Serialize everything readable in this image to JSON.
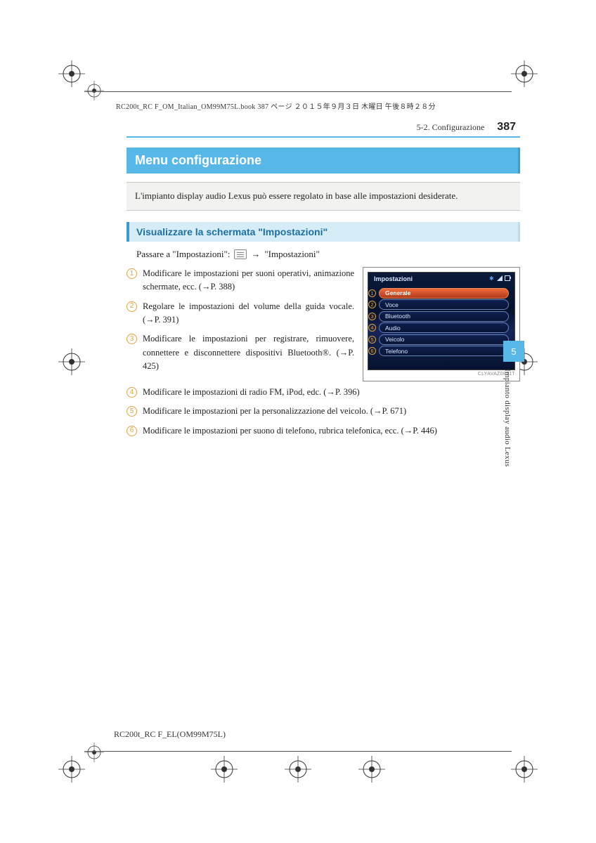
{
  "colors": {
    "accent": "#57b7e7",
    "accent_dark": "#3a9cd1",
    "sub_bg": "#d6edf7",
    "sub_text": "#1a6fa3",
    "step_ring": "#e2a23a",
    "intro_bg": "#f2f2f0",
    "screen_bg_top": "#0a1a3a",
    "screen_bg_bot": "#06122e",
    "pill_sel": "#f06a3a"
  },
  "bookline": "RC200t_RC F_OM_Italian_OM99M75L.book  387 ページ  ２０１５年９月３日  木曜日  午後８時２８分",
  "running": {
    "section": "5-2. Configurazione",
    "page": "387"
  },
  "title": "Menu configurazione",
  "intro": "L'impianto display audio Lexus può essere regolato in base alle impostazioni desiderate.",
  "sub": "Visualizzare la schermata \"Impostazioni\"",
  "lead_pre": "Passare a \"Impostazioni\":",
  "lead_post": "\"Impostazioni\"",
  "steps_a": [
    "Modificare le impostazioni per suoni operativi, animazione schermate, ecc. (→P. 388)",
    "Regolare le impostazioni del volume della guida vocale. (→P. 391)",
    "Modificare le impostazioni per registrare, rimuovere, connettere e disconnettere dispositivi Bluetooth®. (→P. 425)"
  ],
  "steps_b": [
    "Modificare le impostazioni di radio FM, iPod, edc. (→P. 396)",
    "Modificare le impostazioni per la personalizzazione del veicolo. (→P. 671)",
    "Modificare le impostazioni per suono di telefono, rubrica telefonica, ecc. (→P. 446)"
  ],
  "screen": {
    "title": "Impostazioni",
    "rows": [
      "Generale",
      "Voce",
      "Bluetooth",
      "Audio",
      "Veicolo",
      "Telefono"
    ],
    "selected_index": 0,
    "caption": "CLYAVAZ0821T"
  },
  "sidetab": {
    "chapter": "5",
    "label": "Impianto display audio Lexus"
  },
  "footer": "RC200t_RC F_EL(OM99M75L)"
}
